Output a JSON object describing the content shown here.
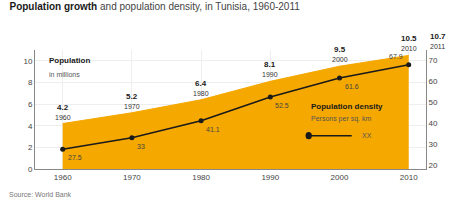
{
  "chart_data": {
    "type": "line",
    "title": "Population growth",
    "subtitle": "and population density, in Tunisia, 1960-2011",
    "source": "Source: World Bank",
    "x": [
      1960,
      1970,
      1980,
      1990,
      2000,
      2010
    ],
    "series": [
      {
        "name": "Population",
        "type": "area",
        "color": "#f5a800",
        "values": [
          4.2,
          5.2,
          6.4,
          8.1,
          9.5,
          10.5
        ],
        "data_labels": true
      },
      {
        "name": "Population density",
        "type": "line",
        "axis": "y2",
        "color": "#1a1a1a",
        "marker": "circle",
        "values": [
          27.5,
          33.0,
          41.1,
          52.5,
          61.6,
          67.9
        ],
        "data_labels": true
      }
    ],
    "point_annotations": [
      {
        "x": 2011,
        "y": 10.7
      }
    ],
    "annotations": [
      "in millions",
      "Persons per sq. km",
      "XX"
    ],
    "xlim": [
      1956,
      2012.5
    ],
    "xticks": [
      1960,
      1970,
      1980,
      1990,
      2000,
      2010
    ],
    "ylim": [
      0,
      11
    ],
    "yticks": [
      0,
      2,
      4,
      6,
      8,
      10
    ],
    "y2lim": [
      18,
      75
    ],
    "y2ticks": [
      20,
      30,
      40,
      50,
      60,
      70
    ],
    "grid": true
  }
}
